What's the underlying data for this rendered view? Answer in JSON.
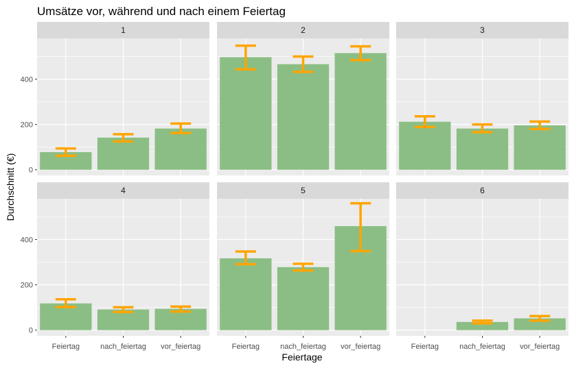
{
  "chart_data": {
    "type": "bar",
    "title": "Umsätze vor, während und nach einem Feiertag",
    "xlabel": "Feiertage",
    "ylabel": "Durchschnitt (€)",
    "categories": [
      "Feiertag",
      "nach_feiertag",
      "vor_feiertag"
    ],
    "ylim": [
      -25,
      580
    ],
    "yticks": [
      0,
      200,
      400
    ],
    "grid": true,
    "layout": "facet 2 rows x 3 columns, shared axes",
    "colors": {
      "bar": "#8BBE84",
      "errorbar": "#FFA500",
      "panel_bg": "#EBEBEB",
      "strip_bg": "#D9D9D9",
      "grid": "#FFFFFF"
    },
    "panels": [
      {
        "label": "1",
        "values": [
          78,
          142,
          182
        ],
        "error_low": [
          62,
          125,
          162
        ],
        "error_high": [
          94,
          157,
          204
        ]
      },
      {
        "label": "2",
        "values": [
          497,
          466,
          515
        ],
        "error_low": [
          443,
          432,
          484
        ],
        "error_high": [
          548,
          500,
          545
        ]
      },
      {
        "label": "3",
        "values": [
          212,
          182,
          196
        ],
        "error_low": [
          189,
          166,
          180
        ],
        "error_high": [
          236,
          200,
          213
        ]
      },
      {
        "label": "4",
        "values": [
          118,
          91,
          94
        ],
        "error_low": [
          102,
          80,
          82
        ],
        "error_high": [
          136,
          101,
          104
        ]
      },
      {
        "label": "5",
        "values": [
          317,
          278,
          459
        ],
        "error_low": [
          291,
          263,
          349
        ],
        "error_high": [
          347,
          293,
          560
        ]
      },
      {
        "label": "6",
        "values": [
          null,
          36,
          52
        ],
        "error_low": [
          null,
          30,
          42
        ],
        "error_high": [
          null,
          42,
          62
        ]
      }
    ]
  }
}
